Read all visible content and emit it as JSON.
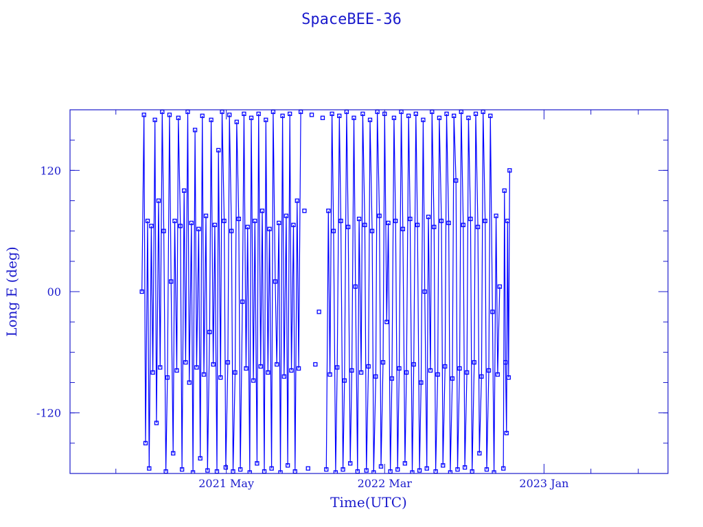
{
  "colors": {
    "data": "#0000ff",
    "axis": "#1a1acc",
    "text": "#1a1acc"
  },
  "chart_data": {
    "type": "line",
    "markers": "open-square",
    "title": "SpaceBEE-36",
    "xlabel": "Time(UTC)",
    "ylabel": "Long E (deg)",
    "xlim": [
      "2020-07-05",
      "2023-08-27"
    ],
    "ylim": [
      -180,
      180
    ],
    "x_major_ticks": [
      {
        "date": "2021-05-01",
        "label": "2021 May"
      },
      {
        "date": "2022-03-01",
        "label": "2022 Mar"
      },
      {
        "date": "2023-01-01",
        "label": "2023 Jan"
      }
    ],
    "x_minor_ticks": [
      "2020-10-01",
      "2023-04-01",
      "2023-07-01"
    ],
    "y_major_ticks": [
      {
        "value": 120,
        "label": "120"
      },
      {
        "value": 0,
        "label": "00"
      },
      {
        "value": -120,
        "label": "-120"
      }
    ],
    "y_minor_step": 30,
    "grid": false,
    "points": [
      [
        "2020-11-20",
        0
      ],
      [
        "2020-11-24",
        175
      ],
      [
        "2020-11-27",
        -150
      ],
      [
        "2020-12-01",
        70
      ],
      [
        "2020-12-04",
        -175
      ],
      [
        "2020-12-08",
        65
      ],
      [
        "2020-12-11",
        -80
      ],
      [
        "2020-12-15",
        170
      ],
      [
        "2020-12-18",
        -130
      ],
      [
        "2020-12-22",
        90
      ],
      [
        "2020-12-25",
        -75
      ],
      [
        "2020-12-29",
        178
      ],
      [
        "2021-01-01",
        60
      ],
      [
        "2021-01-05",
        -178
      ],
      [
        "2021-01-08",
        -85
      ],
      [
        "2021-01-12",
        175
      ],
      [
        "2021-01-15",
        10
      ],
      [
        "2021-01-19",
        -160
      ],
      [
        "2021-01-22",
        70
      ],
      [
        "2021-01-26",
        -78
      ],
      [
        "2021-01-29",
        172
      ],
      [
        "2021-02-02",
        65
      ],
      [
        "2021-02-05",
        -176
      ],
      [
        "2021-02-09",
        100
      ],
      [
        "2021-02-12",
        -70
      ],
      [
        "2021-02-16",
        178
      ],
      [
        "2021-02-19",
        -90
      ],
      [
        "2021-02-23",
        68
      ],
      [
        "2021-02-26",
        -179
      ],
      [
        "2021-03-02",
        160
      ],
      [
        "2021-03-05",
        -75
      ],
      [
        "2021-03-09",
        62
      ],
      [
        "2021-03-12",
        -165
      ],
      [
        "2021-03-16",
        174
      ],
      [
        "2021-03-19",
        -82
      ],
      [
        "2021-03-23",
        75
      ],
      [
        "2021-03-26",
        -177
      ],
      [
        "2021-03-30",
        -40
      ],
      [
        "2021-04-02",
        170
      ],
      [
        "2021-04-06",
        -72
      ],
      [
        "2021-04-09",
        66
      ],
      [
        "2021-04-13",
        -178
      ],
      [
        "2021-04-16",
        140
      ],
      [
        "2021-04-20",
        -85
      ],
      [
        "2021-04-23",
        178
      ],
      [
        "2021-04-27",
        70
      ],
      [
        "2021-04-30",
        -174
      ],
      [
        "2021-05-04",
        -70
      ],
      [
        "2021-05-07",
        175
      ],
      [
        "2021-05-11",
        60
      ],
      [
        "2021-05-14",
        -178
      ],
      [
        "2021-05-18",
        -80
      ],
      [
        "2021-05-21",
        168
      ],
      [
        "2021-05-25",
        72
      ],
      [
        "2021-05-28",
        -176
      ],
      [
        "2021-06-01",
        -10
      ],
      [
        "2021-06-04",
        176
      ],
      [
        "2021-06-08",
        -76
      ],
      [
        "2021-06-11",
        64
      ],
      [
        "2021-06-15",
        -179
      ],
      [
        "2021-06-18",
        172
      ],
      [
        "2021-06-22",
        -88
      ],
      [
        "2021-06-25",
        70
      ],
      [
        "2021-06-29",
        -170
      ],
      [
        "2021-07-02",
        176
      ],
      [
        "2021-07-06",
        -74
      ],
      [
        "2021-07-09",
        80
      ],
      [
        "2021-07-13",
        -178
      ],
      [
        "2021-07-16",
        170
      ],
      [
        "2021-07-20",
        -80
      ],
      [
        "2021-07-23",
        62
      ],
      [
        "2021-07-27",
        -175
      ],
      [
        "2021-07-30",
        178
      ],
      [
        "2021-08-03",
        10
      ],
      [
        "2021-08-06",
        -72
      ],
      [
        "2021-08-10",
        68
      ],
      [
        "2021-08-13",
        -179
      ],
      [
        "2021-08-17",
        174
      ],
      [
        "2021-08-20",
        -84
      ],
      [
        "2021-08-24",
        75
      ],
      [
        "2021-08-27",
        -172
      ],
      [
        "2021-08-31",
        176
      ],
      [
        "2021-09-03",
        -78
      ],
      [
        "2021-09-07",
        66
      ],
      [
        "2021-09-10",
        -178
      ],
      [
        "2021-09-14",
        90
      ],
      [
        "2021-09-17",
        -76
      ],
      [
        "2021-09-21",
        178
      ],
      [
        "2021-09-28",
        80
      ],
      [
        "2021-10-05",
        -175
      ],
      [
        "2021-10-12",
        175
      ],
      [
        "2021-10-19",
        -72
      ],
      [
        "2021-10-26",
        -20
      ],
      [
        "2021-11-02",
        172
      ],
      [
        "2021-11-09",
        -176
      ],
      [
        "2021-11-13",
        80
      ],
      [
        "2021-11-16",
        -82
      ],
      [
        "2021-11-20",
        176
      ],
      [
        "2021-11-23",
        60
      ],
      [
        "2021-11-27",
        -179
      ],
      [
        "2021-11-30",
        -75
      ],
      [
        "2021-12-04",
        174
      ],
      [
        "2021-12-07",
        70
      ],
      [
        "2021-12-11",
        -176
      ],
      [
        "2021-12-14",
        -88
      ],
      [
        "2021-12-18",
        178
      ],
      [
        "2021-12-21",
        64
      ],
      [
        "2021-12-25",
        -170
      ],
      [
        "2021-12-28",
        -78
      ],
      [
        "2022-01-01",
        172
      ],
      [
        "2022-01-04",
        5
      ],
      [
        "2022-01-08",
        -178
      ],
      [
        "2022-01-11",
        72
      ],
      [
        "2022-01-15",
        -80
      ],
      [
        "2022-01-18",
        176
      ],
      [
        "2022-01-22",
        66
      ],
      [
        "2022-01-25",
        -177
      ],
      [
        "2022-01-29",
        -74
      ],
      [
        "2022-02-01",
        170
      ],
      [
        "2022-02-05",
        60
      ],
      [
        "2022-02-08",
        -179
      ],
      [
        "2022-02-12",
        -84
      ],
      [
        "2022-02-15",
        178
      ],
      [
        "2022-02-19",
        75
      ],
      [
        "2022-02-22",
        -173
      ],
      [
        "2022-02-26",
        -70
      ],
      [
        "2022-03-01",
        176
      ],
      [
        "2022-03-05",
        -30
      ],
      [
        "2022-03-08",
        68
      ],
      [
        "2022-03-12",
        -178
      ],
      [
        "2022-03-15",
        -86
      ],
      [
        "2022-03-19",
        172
      ],
      [
        "2022-03-22",
        70
      ],
      [
        "2022-03-26",
        -176
      ],
      [
        "2022-03-29",
        -76
      ],
      [
        "2022-04-02",
        178
      ],
      [
        "2022-04-05",
        62
      ],
      [
        "2022-04-09",
        -170
      ],
      [
        "2022-04-12",
        -80
      ],
      [
        "2022-04-16",
        174
      ],
      [
        "2022-04-19",
        72
      ],
      [
        "2022-04-23",
        -179
      ],
      [
        "2022-04-26",
        -72
      ],
      [
        "2022-04-30",
        176
      ],
      [
        "2022-05-03",
        66
      ],
      [
        "2022-05-07",
        -177
      ],
      [
        "2022-05-10",
        -90
      ],
      [
        "2022-05-14",
        170
      ],
      [
        "2022-05-17",
        0
      ],
      [
        "2022-05-21",
        -175
      ],
      [
        "2022-05-24",
        74
      ],
      [
        "2022-05-28",
        -78
      ],
      [
        "2022-05-31",
        178
      ],
      [
        "2022-06-04",
        64
      ],
      [
        "2022-06-07",
        -178
      ],
      [
        "2022-06-11",
        -82
      ],
      [
        "2022-06-14",
        172
      ],
      [
        "2022-06-18",
        70
      ],
      [
        "2022-06-21",
        -172
      ],
      [
        "2022-06-25",
        -74
      ],
      [
        "2022-06-28",
        176
      ],
      [
        "2022-07-02",
        68
      ],
      [
        "2022-07-05",
        -179
      ],
      [
        "2022-07-09",
        -86
      ],
      [
        "2022-07-12",
        174
      ],
      [
        "2022-07-16",
        110
      ],
      [
        "2022-07-19",
        -176
      ],
      [
        "2022-07-23",
        -76
      ],
      [
        "2022-07-26",
        178
      ],
      [
        "2022-07-30",
        66
      ],
      [
        "2022-08-02",
        -174
      ],
      [
        "2022-08-06",
        -80
      ],
      [
        "2022-08-09",
        172
      ],
      [
        "2022-08-13",
        72
      ],
      [
        "2022-08-16",
        -178
      ],
      [
        "2022-08-20",
        -70
      ],
      [
        "2022-08-23",
        176
      ],
      [
        "2022-08-27",
        64
      ],
      [
        "2022-08-30",
        -160
      ],
      [
        "2022-09-03",
        -84
      ],
      [
        "2022-09-06",
        178
      ],
      [
        "2022-09-10",
        70
      ],
      [
        "2022-09-13",
        -176
      ],
      [
        "2022-09-17",
        -78
      ],
      [
        "2022-09-20",
        174
      ],
      [
        "2022-09-24",
        -20
      ],
      [
        "2022-09-27",
        -179
      ],
      [
        "2022-10-01",
        75
      ],
      [
        "2022-10-04",
        -82
      ],
      [
        "2022-10-08",
        5
      ],
      [
        "2022-10-15",
        -175
      ],
      [
        "2022-10-17",
        100
      ],
      [
        "2022-10-19",
        -70
      ],
      [
        "2022-10-21",
        -140
      ],
      [
        "2022-10-23",
        70
      ],
      [
        "2022-10-25",
        -85
      ],
      [
        "2022-10-27",
        120
      ]
    ]
  }
}
